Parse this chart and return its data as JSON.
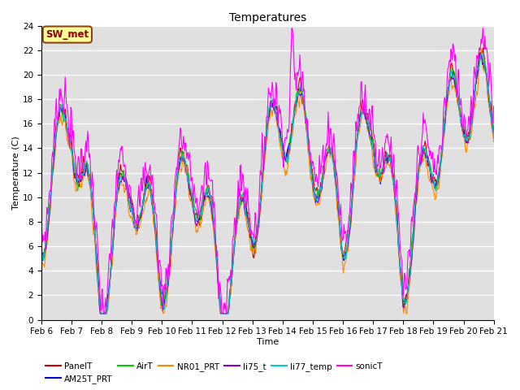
{
  "title": "Temperatures",
  "xlabel": "Time",
  "ylabel": "Temperature (C)",
  "ylim": [
    0,
    24
  ],
  "yticks": [
    0,
    2,
    4,
    6,
    8,
    10,
    12,
    14,
    16,
    18,
    20,
    22,
    24
  ],
  "x_labels": [
    "Feb 6",
    "Feb 7",
    "Feb 8",
    "Feb 9",
    "Feb 10",
    "Feb 11",
    "Feb 12",
    "Feb 13",
    "Feb 14",
    "Feb 15",
    "Feb 16",
    "Feb 17",
    "Feb 18",
    "Feb 19",
    "Feb 20",
    "Feb 21"
  ],
  "annotation_text": "SW_met",
  "series": [
    {
      "label": "PanelT",
      "color": "#CC0000",
      "lw": 0.8
    },
    {
      "label": "AM25T_PRT",
      "color": "#0000CC",
      "lw": 0.8
    },
    {
      "label": "AirT",
      "color": "#00CC00",
      "lw": 0.8
    },
    {
      "label": "NR01_PRT",
      "color": "#FF8800",
      "lw": 0.8
    },
    {
      "label": "li75_t",
      "color": "#8800CC",
      "lw": 0.8
    },
    {
      "label": "li77_temp",
      "color": "#00CCCC",
      "lw": 0.8
    },
    {
      "label": "sonicT",
      "color": "#FF00FF",
      "lw": 0.8
    }
  ],
  "bg_color": "#E0E0E0",
  "grid_color": "white",
  "title_fontsize": 10,
  "label_fontsize": 8,
  "tick_fontsize": 7.5,
  "figsize": [
    6.4,
    4.8
  ],
  "dpi": 100
}
